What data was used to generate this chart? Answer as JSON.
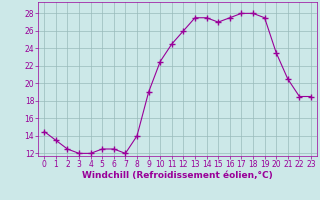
{
  "x": [
    0,
    1,
    2,
    3,
    4,
    5,
    6,
    7,
    8,
    9,
    10,
    11,
    12,
    13,
    14,
    15,
    16,
    17,
    18,
    19,
    20,
    21,
    22,
    23
  ],
  "y": [
    14.5,
    13.5,
    12.5,
    12.0,
    12.0,
    12.5,
    12.5,
    12.0,
    14.0,
    19.0,
    22.5,
    24.5,
    26.0,
    27.5,
    27.5,
    27.0,
    27.5,
    28.0,
    28.0,
    27.5,
    23.5,
    20.5,
    18.5,
    18.5
  ],
  "line_color": "#990099",
  "marker": "+",
  "marker_size": 4,
  "bg_color": "#cce8e8",
  "grid_color": "#99bbbb",
  "xlabel": "Windchill (Refroidissement éolien,°C)",
  "xlabel_color": "#990099",
  "tick_color": "#990099",
  "ylim": [
    12,
    29
  ],
  "xlim": [
    -0.5,
    23.5
  ],
  "yticks": [
    12,
    14,
    16,
    18,
    20,
    22,
    24,
    26,
    28
  ],
  "xticks": [
    0,
    1,
    2,
    3,
    4,
    5,
    6,
    7,
    8,
    9,
    10,
    11,
    12,
    13,
    14,
    15,
    16,
    17,
    18,
    19,
    20,
    21,
    22,
    23
  ],
  "xlabel_fontsize": 6.5,
  "tick_fontsize": 5.5
}
